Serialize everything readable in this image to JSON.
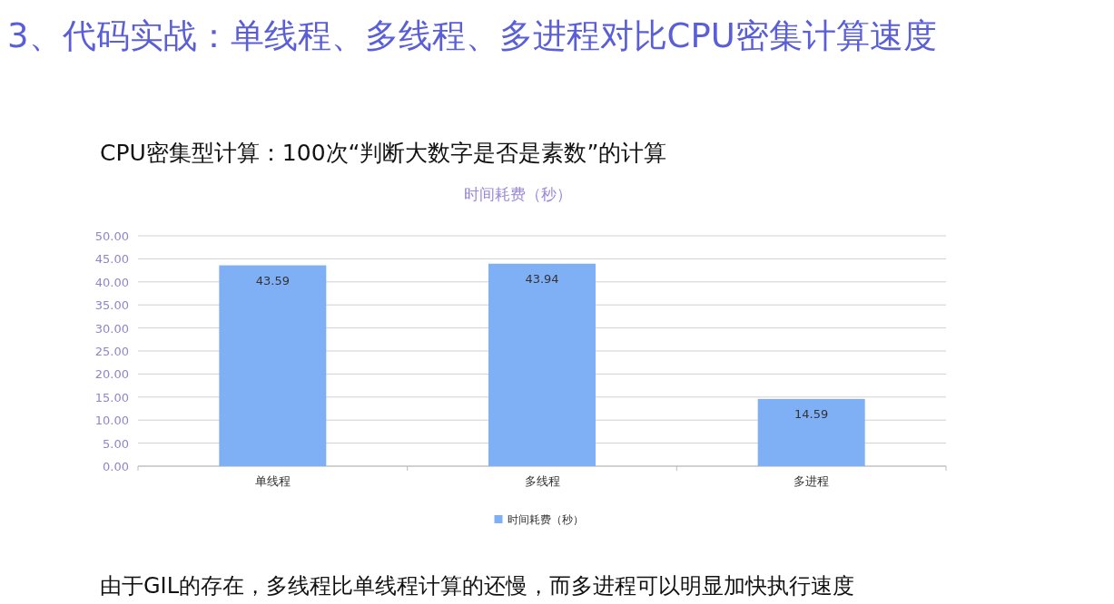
{
  "chart_data": {
    "type": "bar",
    "title": "3、代码实战：单线程、多线程、多进程对比CPU密集计算速度",
    "subtitle": "CPU密集型计算：100次“判断大数字是否是素数”的计算",
    "ylabel": "时间耗费（秒）",
    "categories": [
      "单线程",
      "多线程",
      "多进程"
    ],
    "series": [
      {
        "name": "时间耗费（秒）",
        "color": "#7fb0f6",
        "values": [
          43.59,
          43.94,
          14.59
        ]
      }
    ],
    "ylim": [
      0,
      50
    ],
    "yticks": [
      {
        "value": 0,
        "label": "0.00"
      },
      {
        "value": 5,
        "label": "5.00"
      },
      {
        "value": 10,
        "label": "10.00"
      },
      {
        "value": 15,
        "label": "15.00"
      },
      {
        "value": 20,
        "label": "20.00"
      },
      {
        "value": 25,
        "label": "25.00"
      },
      {
        "value": 30,
        "label": "30.00"
      },
      {
        "value": 35,
        "label": "35.00"
      },
      {
        "value": 40,
        "label": "40.00"
      },
      {
        "value": 45,
        "label": "45.00"
      },
      {
        "value": 50,
        "label": "50.00"
      }
    ],
    "grid": "y",
    "legend": "bottom",
    "data_labels": true,
    "annotations": [
      "由于GIL的存在，多线程比单线程计算的还慢，而多进程可以明显加快执行速度"
    ]
  }
}
